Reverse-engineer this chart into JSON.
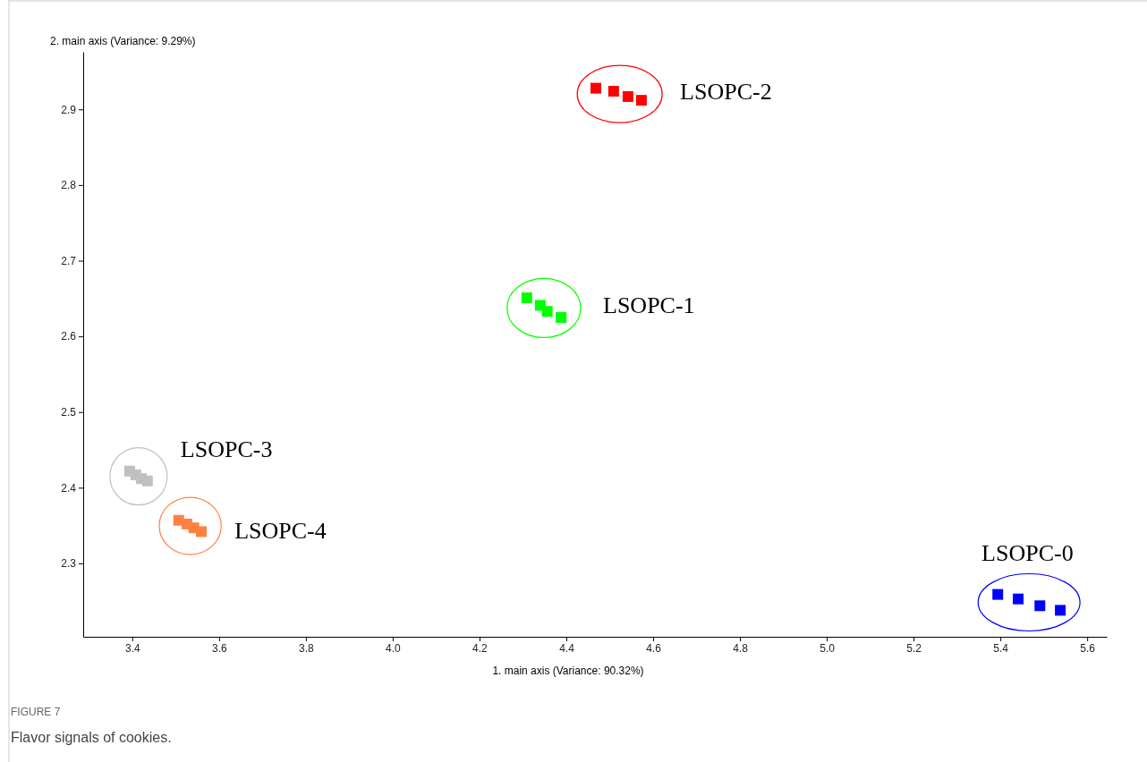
{
  "chart_data": {
    "type": "scatter",
    "xlabel": "1. main axis (Variance: 90.32%)",
    "ylabel": "2. main axis (Variance: 9.29%)",
    "xlim": [
      3.287,
      5.645
    ],
    "ylim": [
      2.203,
      2.976
    ],
    "xticks": [
      3.4,
      3.6,
      3.8,
      {
        "value": 4,
        "label": "4.0"
      },
      4.2,
      4.4,
      4.6,
      4.8,
      {
        "value": 5,
        "label": "5.0"
      },
      5.2,
      5.4,
      5.6
    ],
    "yticks": [
      2.3,
      2.4,
      2.5,
      2.6,
      2.7,
      2.8,
      2.9
    ],
    "marker": "square",
    "grid": false,
    "series": [
      {
        "name": "LSOPC-2",
        "color": "#ff0000",
        "x": [
          4.468,
          4.509,
          4.542,
          4.573
        ],
        "values": [
          2.928,
          2.924,
          2.917,
          2.912
        ]
      },
      {
        "name": "LSOPC-1",
        "color": "#00ff00",
        "x": [
          4.309,
          4.34,
          4.356,
          4.388
        ],
        "values": [
          2.651,
          2.641,
          2.633,
          2.625
        ]
      },
      {
        "name": "LSOPC-3",
        "color": "#c0c0c0",
        "x": [
          3.394,
          3.408,
          3.421,
          3.435
        ],
        "values": [
          2.422,
          2.417,
          2.412,
          2.409
        ]
      },
      {
        "name": "LSOPC-4",
        "color": "#ff8040",
        "x": [
          3.507,
          3.526,
          3.542,
          3.559
        ],
        "values": [
          2.357,
          2.352,
          2.347,
          2.342
        ]
      },
      {
        "name": "LSOPC-0",
        "color": "#0000ff",
        "x": [
          5.394,
          5.441,
          5.491,
          5.538
        ],
        "values": [
          2.259,
          2.253,
          2.244,
          2.238
        ]
      }
    ],
    "annotations": [
      "FIGURE 7",
      "Flavor signals of cookies."
    ]
  }
}
